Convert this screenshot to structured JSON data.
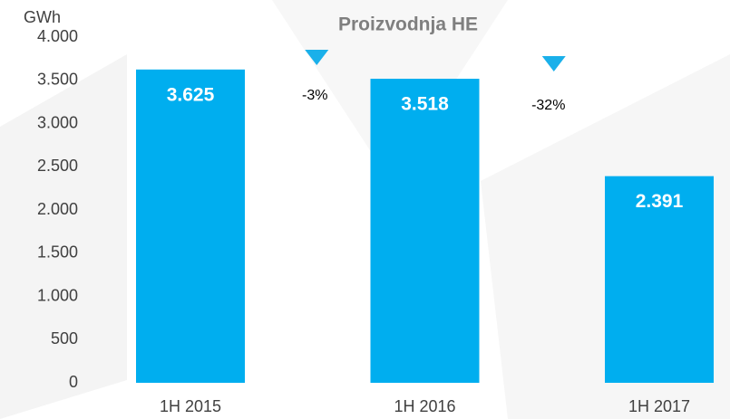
{
  "chart_data": {
    "type": "bar",
    "title": "Proizvodnja HE",
    "y_label": "GWh",
    "categories": [
      "1H 2015",
      "1H 2016",
      "1H 2017"
    ],
    "values": [
      3625,
      3518,
      2391
    ],
    "value_labels": [
      "3.625",
      "3.518",
      "2.391"
    ],
    "color": "#00aeef",
    "ylim": [
      0,
      4000
    ],
    "yticks": [
      0,
      500,
      {
        "value": 1000,
        "label": "1.000"
      },
      {
        "value": 1500,
        "label": "1.500"
      },
      {
        "value": 2000,
        "label": "2.000"
      },
      {
        "value": 2500,
        "label": "2.500"
      },
      {
        "value": 3000,
        "label": "3.000"
      },
      {
        "value": 3500,
        "label": "3.500"
      },
      {
        "value": 4000,
        "label": "4.000"
      }
    ],
    "annotations": [
      {
        "text": "-3%"
      },
      {
        "text": "-32%"
      }
    ],
    "grid": false
  }
}
